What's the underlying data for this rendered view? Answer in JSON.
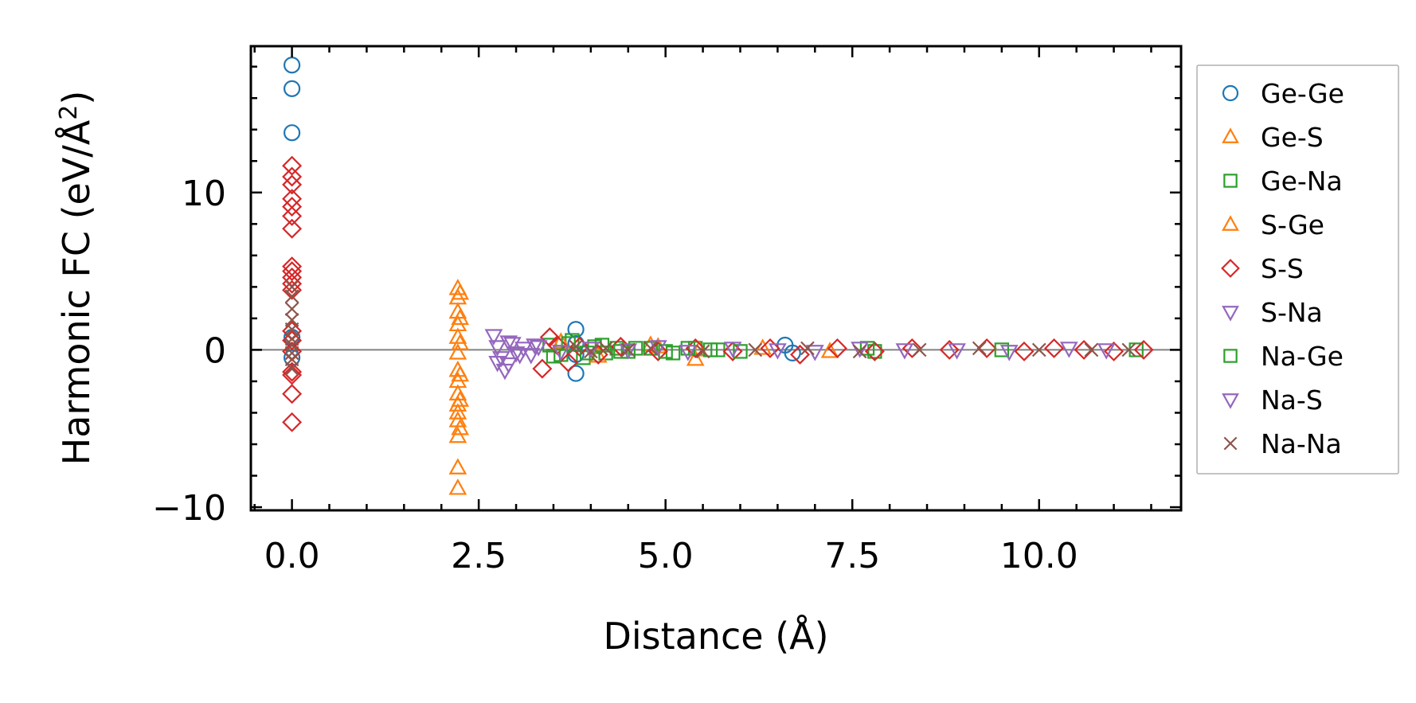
{
  "chart_data": {
    "type": "scatter",
    "xlabel": "Distance (Å)",
    "ylabel_main": "Harmonic FC (eV/Å",
    "ylabel_sup": "2",
    "ylabel_close": ")",
    "xlim": [
      -0.55,
      11.9
    ],
    "ylim": [
      -10.2,
      19.3
    ],
    "x_ticks": [
      {
        "value": 0.0,
        "label": "0.0"
      },
      {
        "value": 2.5,
        "label": "2.5"
      },
      {
        "value": 5.0,
        "label": "5.0"
      },
      {
        "value": 7.5,
        "label": "7.5"
      },
      {
        "value": 10.0,
        "label": "10.0"
      }
    ],
    "y_ticks": [
      {
        "value": -10,
        "label": "−10"
      },
      {
        "value": 0,
        "label": "0"
      },
      {
        "value": 10,
        "label": "10"
      }
    ],
    "x_minor_step": 0.5,
    "y_minor_step": 2,
    "zero_line": true,
    "legend_position": "outside-right",
    "series": [
      {
        "name": "Ge-Ge",
        "marker": "circle",
        "color": "#1f77b4",
        "x": [
          0,
          0,
          0,
          0,
          0,
          3.8,
          3.8,
          3.8,
          3.8,
          6.6,
          6.7
        ],
        "y": [
          18.1,
          16.6,
          13.8,
          0.8,
          -0.5,
          1.3,
          -1.5,
          0.4,
          -0.3,
          0.3,
          -0.2
        ]
      },
      {
        "name": "Ge-S",
        "marker": "triangle-up",
        "color": "#ff7f0e",
        "x": [
          2.22,
          2.22,
          2.22,
          2.22,
          2.22,
          2.22,
          2.22,
          2.22,
          2.22,
          2.22,
          2.22,
          2.22,
          2.22,
          2.22,
          2.22,
          4.8,
          5.4
        ],
        "y": [
          3.9,
          3.3,
          2.4,
          1.6,
          0.8,
          -0.2,
          -1.3,
          -2.0,
          -2.8,
          -3.5,
          -4.0,
          -4.5,
          -5.5,
          -7.5,
          -8.8,
          0.3,
          -0.6
        ]
      },
      {
        "name": "Ge-Na",
        "marker": "square",
        "color": "#2ca02c",
        "x": [
          3.45,
          3.6,
          3.75,
          3.9,
          4.05,
          4.2,
          4.35,
          4.5,
          4.8,
          5.1,
          5.4,
          5.7,
          7.8,
          11.3
        ],
        "y": [
          0.3,
          -0.3,
          0.6,
          -0.5,
          0.2,
          -0.2,
          0.1,
          -0.1,
          0.1,
          -0.2,
          0.1,
          0.0,
          -0.1,
          0.0
        ]
      },
      {
        "name": "S-Ge",
        "marker": "triangle-up",
        "color": "#ff7f0e",
        "x": [
          2.25,
          2.25,
          2.25,
          2.25,
          2.25,
          2.25,
          3.6,
          4.1,
          4.9,
          5.45,
          6.3,
          7.2
        ],
        "y": [
          3.6,
          2.0,
          0.4,
          -1.6,
          -3.2,
          -5.0,
          0.5,
          -0.4,
          0.2,
          0.0,
          0.1,
          -0.1
        ]
      },
      {
        "name": "S-S",
        "marker": "diamond",
        "color": "#d62728",
        "x": [
          0,
          0,
          0,
          0,
          0,
          0,
          0,
          0,
          0,
          0,
          0,
          0,
          0,
          0,
          0,
          0,
          0,
          0,
          0,
          3.35,
          3.45,
          3.55,
          3.7,
          3.85,
          4.1,
          4.4,
          4.9,
          5.4,
          5.9,
          6.4,
          6.8,
          7.3,
          7.8,
          8.3,
          8.8,
          9.3,
          9.8,
          10.2,
          10.6,
          11.0,
          11.4
        ],
        "y": [
          11.7,
          11.0,
          10.5,
          9.6,
          9.1,
          8.5,
          7.7,
          5.3,
          5.0,
          4.6,
          4.2,
          3.8,
          1.2,
          0.6,
          -0.1,
          -1.4,
          -1.6,
          -2.8,
          -4.6,
          -1.2,
          0.8,
          0.3,
          -0.8,
          0.2,
          -0.3,
          0.2,
          -0.1,
          0.1,
          -0.1,
          0.1,
          -0.3,
          0.1,
          -0.1,
          0.1,
          0.0,
          0.1,
          -0.1,
          0.1,
          0.0,
          -0.1,
          0.0
        ]
      },
      {
        "name": "S-Na",
        "marker": "triangle-down",
        "color": "#9467bd",
        "x": [
          2.7,
          2.75,
          2.8,
          2.85,
          2.9,
          2.95,
          3.0,
          3.1,
          3.2,
          3.3
        ],
        "y": [
          0.9,
          0.2,
          -0.5,
          -1.3,
          -0.9,
          0.4,
          -0.2,
          0.1,
          -0.3,
          0.2
        ]
      },
      {
        "name": "Na-Ge",
        "marker": "square",
        "color": "#2ca02c",
        "x": [
          3.5,
          3.7,
          3.95,
          4.15,
          4.4,
          4.6,
          5.0,
          5.3,
          5.6,
          6.0,
          7.7,
          9.5
        ],
        "y": [
          -0.4,
          0.4,
          -0.2,
          0.3,
          -0.1,
          0.1,
          -0.1,
          0.1,
          0.0,
          -0.1,
          0.1,
          0.0
        ]
      },
      {
        "name": "Na-S",
        "marker": "triangle-down",
        "color": "#9467bd",
        "x": [
          2.75,
          2.9,
          3.05,
          3.25,
          3.6,
          4.0,
          4.5,
          4.9,
          5.3,
          5.9,
          6.5,
          7.0,
          7.6,
          8.2,
          8.9,
          9.6,
          10.4,
          10.9
        ],
        "y": [
          -0.8,
          0.5,
          -0.3,
          0.3,
          -0.1,
          0.1,
          0.0,
          0.2,
          -0.1,
          0.1,
          0.0,
          -0.1,
          0.1,
          0.0,
          0.0,
          -0.1,
          0.1,
          0.0
        ]
      },
      {
        "name": "Na-Na",
        "marker": "x",
        "color": "#8c564b",
        "x": [
          0,
          0,
          0,
          0,
          0,
          0,
          0,
          0,
          0,
          0,
          3.8,
          4.0,
          4.2,
          4.5,
          4.8,
          5.5,
          6.2,
          6.9,
          7.6,
          8.4,
          9.2,
          10.0,
          10.7,
          11.2
        ],
        "y": [
          4.0,
          3.4,
          2.6,
          1.9,
          1.3,
          0.7,
          0.3,
          -0.2,
          -0.6,
          -1.2,
          0.2,
          -0.1,
          0.1,
          0.0,
          0.1,
          -0.1,
          0.0,
          0.1,
          -0.1,
          0.0,
          0.1,
          0.0,
          0.0,
          0.0
        ]
      }
    ]
  }
}
